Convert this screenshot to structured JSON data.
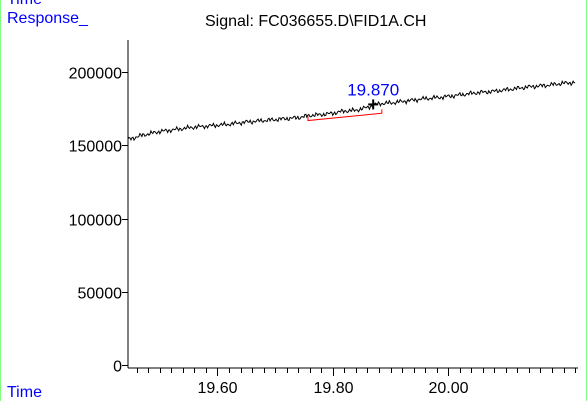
{
  "header": {
    "top_label": "Time",
    "response_label": "Response_",
    "time_label": "Time"
  },
  "chart_data": {
    "type": "line",
    "title": "Signal: FC036655.D\\FID1A.CH",
    "xlabel": "Time",
    "ylabel": "Response_",
    "xlim": [
      19.445,
      20.225
    ],
    "ylim": [
      -2000,
      222000
    ],
    "x_ticks": [
      "19.60",
      "19.80",
      "20.00"
    ],
    "x_tick_values": [
      19.6,
      19.8,
      20.0
    ],
    "y_ticks": [
      "0",
      "50000",
      "100000",
      "150000",
      "200000"
    ],
    "y_tick_values": [
      0,
      50000,
      100000,
      150000,
      200000
    ],
    "grid": false,
    "series": [
      {
        "color": "#000000",
        "x": [
          19.445,
          19.47,
          19.5,
          19.53,
          19.56,
          19.59,
          19.62,
          19.65,
          19.68,
          19.71,
          19.74,
          19.76,
          19.78,
          19.8,
          19.82,
          19.84,
          19.86,
          19.87,
          19.88,
          19.9,
          19.93,
          19.96,
          19.99,
          20.02,
          20.05,
          20.08,
          20.11,
          20.14,
          20.17,
          20.2,
          20.22
        ],
        "y": [
          154000,
          157000,
          159500,
          161000,
          162500,
          163500,
          164500,
          166000,
          167000,
          168000,
          169000,
          170500,
          171000,
          172000,
          173500,
          174000,
          176000,
          177500,
          178500,
          179000,
          180500,
          182000,
          183000,
          184500,
          186000,
          187000,
          188500,
          190000,
          191000,
          192500,
          193000
        ]
      }
    ],
    "peak": {
      "label": "19.870",
      "x": 19.87,
      "y": 178000,
      "label_color": "#0000ff"
    },
    "baseline": {
      "color": "#ff0000",
      "x_start": 19.757,
      "x_end": 19.885,
      "y_start": 167000,
      "y_end": 172000
    }
  }
}
